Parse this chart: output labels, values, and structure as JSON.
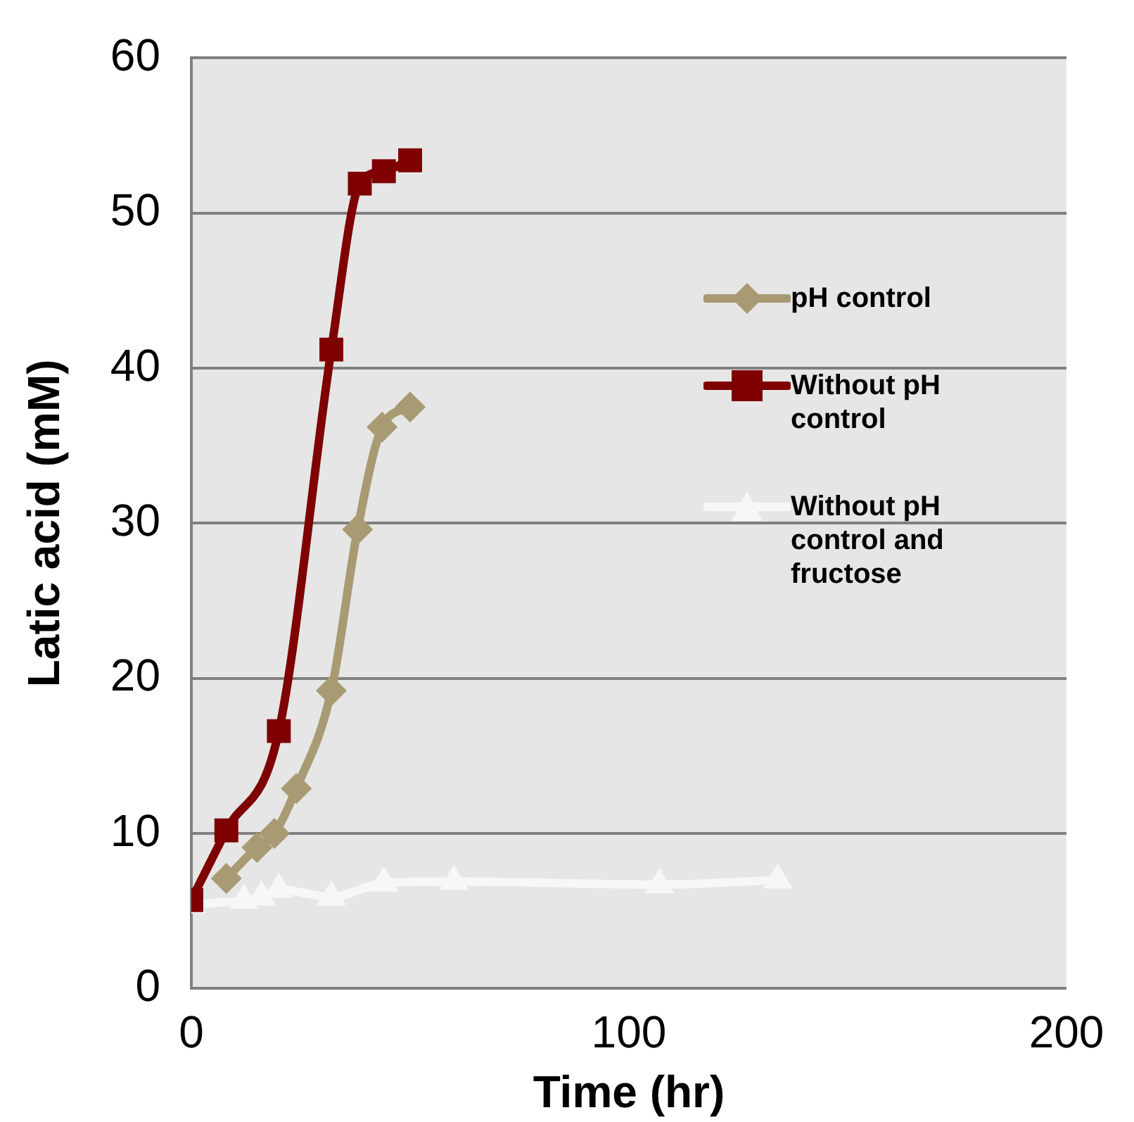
{
  "chart_data": {
    "type": "line",
    "xlabel": "Time (hr)",
    "ylabel": "Latic acid (mM)",
    "xlim": [
      0,
      200
    ],
    "xticks": [
      0,
      100,
      200
    ],
    "ylim": [
      0,
      60
    ],
    "yticks": [
      0,
      10,
      20,
      30,
      40,
      50,
      60
    ],
    "grid": "y",
    "legend": "right",
    "line_style": "solid",
    "series": [
      {
        "name": "pH control",
        "color": "#a89a72",
        "marker": "diamond",
        "x": [
          8,
          15,
          19,
          24,
          32,
          38,
          43.6,
          50
        ],
        "values": [
          7.1,
          9.1,
          10,
          12.9,
          19.2,
          29.6,
          36.2,
          37.5
        ]
      },
      {
        "name": "Without pH control",
        "color": "#7f0000",
        "marker": "square",
        "x": [
          0,
          8,
          20,
          32,
          38.5,
          44,
          50
        ],
        "values": [
          5.7,
          10.2,
          16.6,
          41.2,
          51.9,
          52.7,
          53.4
        ]
      },
      {
        "name": "Without pH control and fructose",
        "color": "#f7f7f7",
        "marker": "triangle",
        "x": [
          0,
          12,
          16,
          20,
          32,
          44,
          60,
          107,
          134
        ],
        "values": [
          5.4,
          5.7,
          5.9,
          6.4,
          5.9,
          6.8,
          6.9,
          6.7,
          7.0
        ]
      }
    ]
  }
}
